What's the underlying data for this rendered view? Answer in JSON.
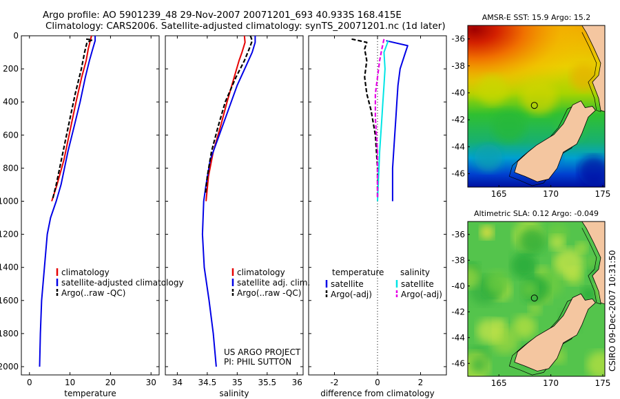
{
  "header": {
    "line1": "Argo profile: AO 5901239_48 29-Nov-2007 20071201_693 40.933S 168.415E",
    "line2": "Climatology: CARS2006. Satellite-adjusted climatology: synTS_20071201.nc (1d later)"
  },
  "side_stamp": "CSIRO 09-Dec-2007 10:31:50",
  "project_note": {
    "line1": "US ARGO PROJECT",
    "line2": "PI: PHIL SUTTON"
  },
  "colors": {
    "climatology": "#e60000",
    "satellite": "#0000e6",
    "argo": "#000000",
    "satellite_salinity": "#00e5e5",
    "argo_adj_salinity": "#e600e6"
  },
  "chart_data": [
    {
      "type": "line",
      "xlabel": "temperature",
      "xlim": [
        -2,
        32
      ],
      "xticks": [
        0,
        10,
        20,
        30
      ],
      "ylim": [
        0,
        2050
      ],
      "yticks": [
        0,
        200,
        400,
        600,
        800,
        1000,
        1200,
        1400,
        1600,
        1800,
        2000
      ],
      "legend": {
        "position": "bottom",
        "entries": [
          "climatology",
          "satellite-adjusted climatology",
          "Argo(..raw -QC)"
        ]
      },
      "series": [
        {
          "name": "climatology",
          "style": "solid",
          "points": [
            [
              15.3,
              0
            ],
            [
              15.0,
              30
            ],
            [
              14.5,
              80
            ],
            [
              14.0,
              150
            ],
            [
              12.9,
              250
            ],
            [
              11.5,
              400
            ],
            [
              10.2,
              550
            ],
            [
              8.5,
              750
            ],
            [
              6.8,
              900
            ],
            [
              5.5,
              1000
            ]
          ]
        },
        {
          "name": "satellite-adjusted climatology",
          "style": "solid",
          "points": [
            [
              16.2,
              0
            ],
            [
              16.2,
              30
            ],
            [
              15.5,
              90
            ],
            [
              14.8,
              150
            ],
            [
              13.8,
              250
            ],
            [
              12.5,
              400
            ],
            [
              11.0,
              550
            ],
            [
              9.5,
              700
            ],
            [
              7.8,
              900
            ],
            [
              6.6,
              1000
            ],
            [
              5.2,
              1100
            ],
            [
              4.4,
              1200
            ],
            [
              3.7,
              1400
            ],
            [
              3.0,
              1600
            ],
            [
              2.7,
              1800
            ],
            [
              2.5,
              2000
            ]
          ]
        },
        {
          "name": "Argo(..raw -QC)",
          "style": "dashed",
          "points": [
            [
              14.0,
              20
            ],
            [
              15.5,
              25
            ],
            [
              14.2,
              40
            ],
            [
              13.6,
              100
            ],
            [
              12.8,
              200
            ],
            [
              11.3,
              350
            ],
            [
              10.0,
              500
            ],
            [
              8.3,
              700
            ],
            [
              6.6,
              900
            ],
            [
              5.7,
              990
            ]
          ]
        }
      ]
    },
    {
      "type": "line",
      "xlabel": "salinity",
      "xlim": [
        33.8,
        36.1
      ],
      "xticks": [
        34,
        34.5,
        35,
        35.5,
        36
      ],
      "ylim": [
        0,
        2050
      ],
      "legend": {
        "position": "bottom",
        "entries": [
          "climatology",
          "satellite adj. clim.",
          "Argo(..raw -QC)"
        ]
      },
      "series": [
        {
          "name": "climatology",
          "style": "solid",
          "points": [
            [
              35.12,
              0
            ],
            [
              35.13,
              40
            ],
            [
              35.08,
              100
            ],
            [
              35.03,
              150
            ],
            [
              34.95,
              250
            ],
            [
              34.83,
              400
            ],
            [
              34.72,
              550
            ],
            [
              34.6,
              700
            ],
            [
              34.52,
              850
            ],
            [
              34.48,
              1000
            ]
          ]
        },
        {
          "name": "satellite adj. clim.",
          "style": "solid",
          "points": [
            [
              35.3,
              0
            ],
            [
              35.3,
              40
            ],
            [
              35.25,
              100
            ],
            [
              35.15,
              180
            ],
            [
              35.0,
              300
            ],
            [
              34.85,
              450
            ],
            [
              34.7,
              600
            ],
            [
              34.55,
              750
            ],
            [
              34.48,
              900
            ],
            [
              34.44,
              1000
            ],
            [
              34.42,
              1200
            ],
            [
              34.45,
              1400
            ],
            [
              34.53,
              1600
            ],
            [
              34.6,
              1800
            ],
            [
              34.65,
              2000
            ]
          ]
        },
        {
          "name": "Argo(..raw -QC)",
          "style": "dashed",
          "points": [
            [
              35.22,
              0
            ],
            [
              35.25,
              30
            ],
            [
              35.2,
              80
            ],
            [
              35.12,
              150
            ],
            [
              34.98,
              250
            ],
            [
              34.8,
              400
            ],
            [
              34.68,
              550
            ],
            [
              34.57,
              700
            ],
            [
              34.5,
              850
            ],
            [
              34.47,
              950
            ]
          ]
        }
      ]
    },
    {
      "type": "line",
      "xlabel": "difference from climatology",
      "xlim": [
        -3.2,
        3.2
      ],
      "xticks": [
        -2,
        0,
        2
      ],
      "ylim": [
        0,
        2050
      ],
      "zero_line": true,
      "legend": {
        "position": "bottom",
        "entries": [
          "temperature",
          "satellite",
          "Argo(-adj)",
          "salinity",
          "satellite",
          "Argo(-adj)"
        ]
      },
      "series": [
        {
          "name": "temperature satellite",
          "style": "solid",
          "color": "#0000e6",
          "points": [
            [
              0.4,
              30
            ],
            [
              1.4,
              60
            ],
            [
              1.3,
              100
            ],
            [
              1.05,
              200
            ],
            [
              0.95,
              300
            ],
            [
              0.9,
              400
            ],
            [
              0.85,
              500
            ],
            [
              0.8,
              600
            ],
            [
              0.7,
              800
            ],
            [
              0.7,
              1000
            ]
          ]
        },
        {
          "name": "temperature Argo(-adj)",
          "style": "dashed",
          "color": "#000000",
          "points": [
            [
              -1.2,
              20
            ],
            [
              -0.5,
              40
            ],
            [
              -0.6,
              80
            ],
            [
              -0.5,
              150
            ],
            [
              -0.6,
              250
            ],
            [
              -0.5,
              350
            ],
            [
              -0.3,
              450
            ],
            [
              -0.1,
              600
            ],
            [
              0.0,
              800
            ],
            [
              0.0,
              980
            ]
          ]
        },
        {
          "name": "salinity satellite",
          "style": "solid",
          "color": "#00e5e5",
          "points": [
            [
              0.5,
              30
            ],
            [
              0.3,
              100
            ],
            [
              0.35,
              200
            ],
            [
              0.3,
              300
            ],
            [
              0.25,
              400
            ],
            [
              0.2,
              500
            ],
            [
              0.1,
              700
            ],
            [
              0.0,
              1000
            ]
          ]
        },
        {
          "name": "salinity Argo(-adj)",
          "style": "dashed",
          "color": "#e600e6",
          "points": [
            [
              0.3,
              20
            ],
            [
              0.2,
              80
            ],
            [
              0.1,
              150
            ],
            [
              0.0,
              250
            ],
            [
              -0.1,
              350
            ],
            [
              -0.1,
              500
            ],
            [
              0.0,
              700
            ],
            [
              0.0,
              980
            ]
          ]
        }
      ]
    },
    {
      "type": "heatmap",
      "title": "AMSR-E SST: 15.9 Argo: 15.2",
      "xlim": [
        162,
        175.2
      ],
      "xticks": [
        165,
        170,
        175
      ],
      "ylim": [
        -47,
        -35
      ],
      "yticks": [
        -36,
        -38,
        -40,
        -42,
        -44,
        -46
      ],
      "marker": [
        168.415,
        -40.933
      ]
    },
    {
      "type": "heatmap",
      "title": "Altimetric SLA: 0.12 Argo: -0.049",
      "xlim": [
        162,
        175.2
      ],
      "xticks": [
        165,
        170,
        175
      ],
      "ylim": [
        -47,
        -35
      ],
      "yticks": [
        -36,
        -38,
        -40,
        -42,
        -44,
        -46
      ],
      "marker": [
        168.415,
        -40.933
      ]
    }
  ]
}
